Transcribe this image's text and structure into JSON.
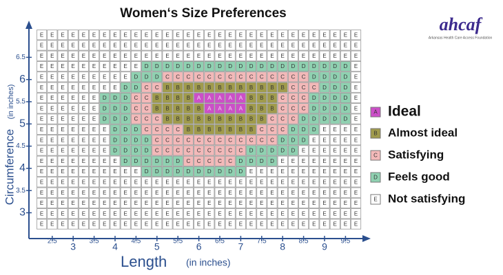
{
  "title": "Women‘s Size Preferences",
  "logo": {
    "name": "ahcaf",
    "tagline": "Arkansas Health Care Access Foundation"
  },
  "chart_data": {
    "type": "grid",
    "x_label": "Length",
    "x_unit": "(in inches)",
    "y_label": "Circumference",
    "y_unit": "(in inches)",
    "xlim": [
      2.125,
      9.875
    ],
    "ylim": [
      2.625,
      7.125
    ],
    "xticks": [
      2.5,
      3,
      3.5,
      4,
      4.5,
      5,
      5.5,
      6,
      6.5,
      7,
      7.5,
      8,
      8.5,
      9,
      9.5
    ],
    "yticks": [
      3,
      3.5,
      4,
      4.5,
      5,
      5.5,
      6,
      6.5
    ],
    "legend": [
      {
        "key": "A",
        "name": "Ideal",
        "color": "#cc4fc8"
      },
      {
        "key": "B",
        "name": "Almost ideal",
        "color": "#a09b4c"
      },
      {
        "key": "C",
        "name": "Satisfying",
        "color": "#f3b9b9"
      },
      {
        "key": "D",
        "name": "Feels good",
        "color": "#8fd1b1"
      },
      {
        "key": "E",
        "name": "Not satisfying",
        "color": "#ffffff"
      }
    ],
    "rows": [
      [
        "E",
        "E",
        "E",
        "E",
        "E",
        "E",
        "E",
        "E",
        "E",
        "E",
        "E",
        "E",
        "E",
        "E",
        "E",
        "E",
        "E",
        "E",
        "E",
        "E",
        "E",
        "E",
        "E",
        "E",
        "E",
        "E",
        "E",
        "E",
        "E",
        "E",
        "E"
      ],
      [
        "E",
        "E",
        "E",
        "E",
        "E",
        "E",
        "E",
        "E",
        "E",
        "E",
        "E",
        "E",
        "E",
        "E",
        "E",
        "E",
        "E",
        "E",
        "E",
        "E",
        "E",
        "E",
        "E",
        "E",
        "E",
        "E",
        "E",
        "E",
        "E",
        "E",
        "E"
      ],
      [
        "E",
        "E",
        "E",
        "E",
        "E",
        "E",
        "E",
        "E",
        "E",
        "E",
        "E",
        "E",
        "E",
        "E",
        "E",
        "E",
        "E",
        "E",
        "E",
        "E",
        "E",
        "E",
        "E",
        "E",
        "E",
        "E",
        "E",
        "E",
        "E",
        "E",
        "E"
      ],
      [
        "E",
        "E",
        "E",
        "E",
        "E",
        "E",
        "E",
        "E",
        "E",
        "E",
        "D",
        "D",
        "D",
        "D",
        "D",
        "D",
        "D",
        "D",
        "D",
        "D",
        "D",
        "D",
        "D",
        "D",
        "D",
        "D",
        "D",
        "D",
        "D",
        "D",
        "E"
      ],
      [
        "E",
        "E",
        "E",
        "E",
        "E",
        "E",
        "E",
        "E",
        "E",
        "D",
        "D",
        "D",
        "C",
        "C",
        "C",
        "C",
        "C",
        "C",
        "C",
        "C",
        "C",
        "C",
        "C",
        "C",
        "C",
        "C",
        "D",
        "D",
        "D",
        "D",
        "E"
      ],
      [
        "E",
        "E",
        "E",
        "E",
        "E",
        "E",
        "E",
        "E",
        "D",
        "D",
        "C",
        "C",
        "B",
        "B",
        "B",
        "B",
        "B",
        "B",
        "B",
        "B",
        "B",
        "B",
        "B",
        "B",
        "C",
        "C",
        "C",
        "D",
        "D",
        "D",
        "E"
      ],
      [
        "E",
        "E",
        "E",
        "E",
        "E",
        "E",
        "D",
        "D",
        "D",
        "C",
        "C",
        "B",
        "B",
        "B",
        "B",
        "A",
        "A",
        "A",
        "A",
        "A",
        "B",
        "B",
        "B",
        "C",
        "C",
        "C",
        "D",
        "D",
        "D",
        "D",
        "E"
      ],
      [
        "E",
        "E",
        "E",
        "E",
        "E",
        "E",
        "D",
        "D",
        "D",
        "C",
        "C",
        "B",
        "B",
        "B",
        "B",
        "B",
        "A",
        "A",
        "A",
        "A",
        "B",
        "B",
        "B",
        "C",
        "C",
        "C",
        "D",
        "D",
        "D",
        "D",
        "E"
      ],
      [
        "E",
        "E",
        "E",
        "E",
        "E",
        "E",
        "D",
        "D",
        "D",
        "C",
        "C",
        "C",
        "B",
        "B",
        "B",
        "B",
        "B",
        "B",
        "B",
        "B",
        "B",
        "B",
        "C",
        "C",
        "C",
        "D",
        "D",
        "D",
        "D",
        "D",
        "E"
      ],
      [
        "E",
        "E",
        "E",
        "E",
        "E",
        "E",
        "E",
        "D",
        "D",
        "D",
        "C",
        "C",
        "C",
        "C",
        "B",
        "B",
        "B",
        "B",
        "B",
        "B",
        "B",
        "C",
        "C",
        "C",
        "D",
        "D",
        "D",
        "E",
        "E",
        "E",
        "E"
      ],
      [
        "E",
        "E",
        "E",
        "E",
        "E",
        "E",
        "E",
        "D",
        "D",
        "D",
        "D",
        "C",
        "C",
        "C",
        "C",
        "C",
        "C",
        "C",
        "C",
        "C",
        "C",
        "C",
        "C",
        "D",
        "D",
        "D",
        "E",
        "E",
        "E",
        "E",
        "E"
      ],
      [
        "E",
        "E",
        "E",
        "E",
        "E",
        "E",
        "E",
        "D",
        "D",
        "D",
        "D",
        "C",
        "C",
        "C",
        "C",
        "C",
        "C",
        "C",
        "C",
        "C",
        "D",
        "D",
        "D",
        "D",
        "D",
        "E",
        "E",
        "E",
        "E",
        "E",
        "E"
      ],
      [
        "E",
        "E",
        "E",
        "E",
        "E",
        "E",
        "E",
        "E",
        "D",
        "D",
        "D",
        "D",
        "D",
        "D",
        "C",
        "C",
        "C",
        "C",
        "C",
        "D",
        "D",
        "D",
        "D",
        "E",
        "E",
        "E",
        "E",
        "E",
        "E",
        "E",
        "E"
      ],
      [
        "E",
        "E",
        "E",
        "E",
        "E",
        "E",
        "E",
        "E",
        "E",
        "E",
        "D",
        "D",
        "D",
        "D",
        "D",
        "D",
        "D",
        "D",
        "D",
        "D",
        "E",
        "E",
        "E",
        "E",
        "E",
        "E",
        "E",
        "E",
        "E",
        "E",
        "E"
      ],
      [
        "E",
        "E",
        "E",
        "E",
        "E",
        "E",
        "E",
        "E",
        "E",
        "E",
        "E",
        "E",
        "E",
        "E",
        "E",
        "E",
        "E",
        "E",
        "E",
        "E",
        "E",
        "E",
        "E",
        "E",
        "E",
        "E",
        "E",
        "E",
        "E",
        "E",
        "E"
      ],
      [
        "E",
        "E",
        "E",
        "E",
        "E",
        "E",
        "E",
        "E",
        "E",
        "E",
        "E",
        "E",
        "E",
        "E",
        "E",
        "E",
        "E",
        "E",
        "E",
        "E",
        "E",
        "E",
        "E",
        "E",
        "E",
        "E",
        "E",
        "E",
        "E",
        "E",
        "E"
      ],
      [
        "E",
        "E",
        "E",
        "E",
        "E",
        "E",
        "E",
        "E",
        "E",
        "E",
        "E",
        "E",
        "E",
        "E",
        "E",
        "E",
        "E",
        "E",
        "E",
        "E",
        "E",
        "E",
        "E",
        "E",
        "E",
        "E",
        "E",
        "E",
        "E",
        "E",
        "E"
      ],
      [
        "E",
        "E",
        "E",
        "E",
        "E",
        "E",
        "E",
        "E",
        "E",
        "E",
        "E",
        "E",
        "E",
        "E",
        "E",
        "E",
        "E",
        "E",
        "E",
        "E",
        "E",
        "E",
        "E",
        "E",
        "E",
        "E",
        "E",
        "E",
        "E",
        "E",
        "E"
      ],
      [
        "E",
        "E",
        "E",
        "E",
        "E",
        "E",
        "E",
        "E",
        "E",
        "E",
        "E",
        "E",
        "E",
        "E",
        "E",
        "E",
        "E",
        "E",
        "E",
        "E",
        "E",
        "E",
        "E",
        "E",
        "E",
        "E",
        "E",
        "E",
        "E",
        "E",
        "E"
      ]
    ]
  }
}
